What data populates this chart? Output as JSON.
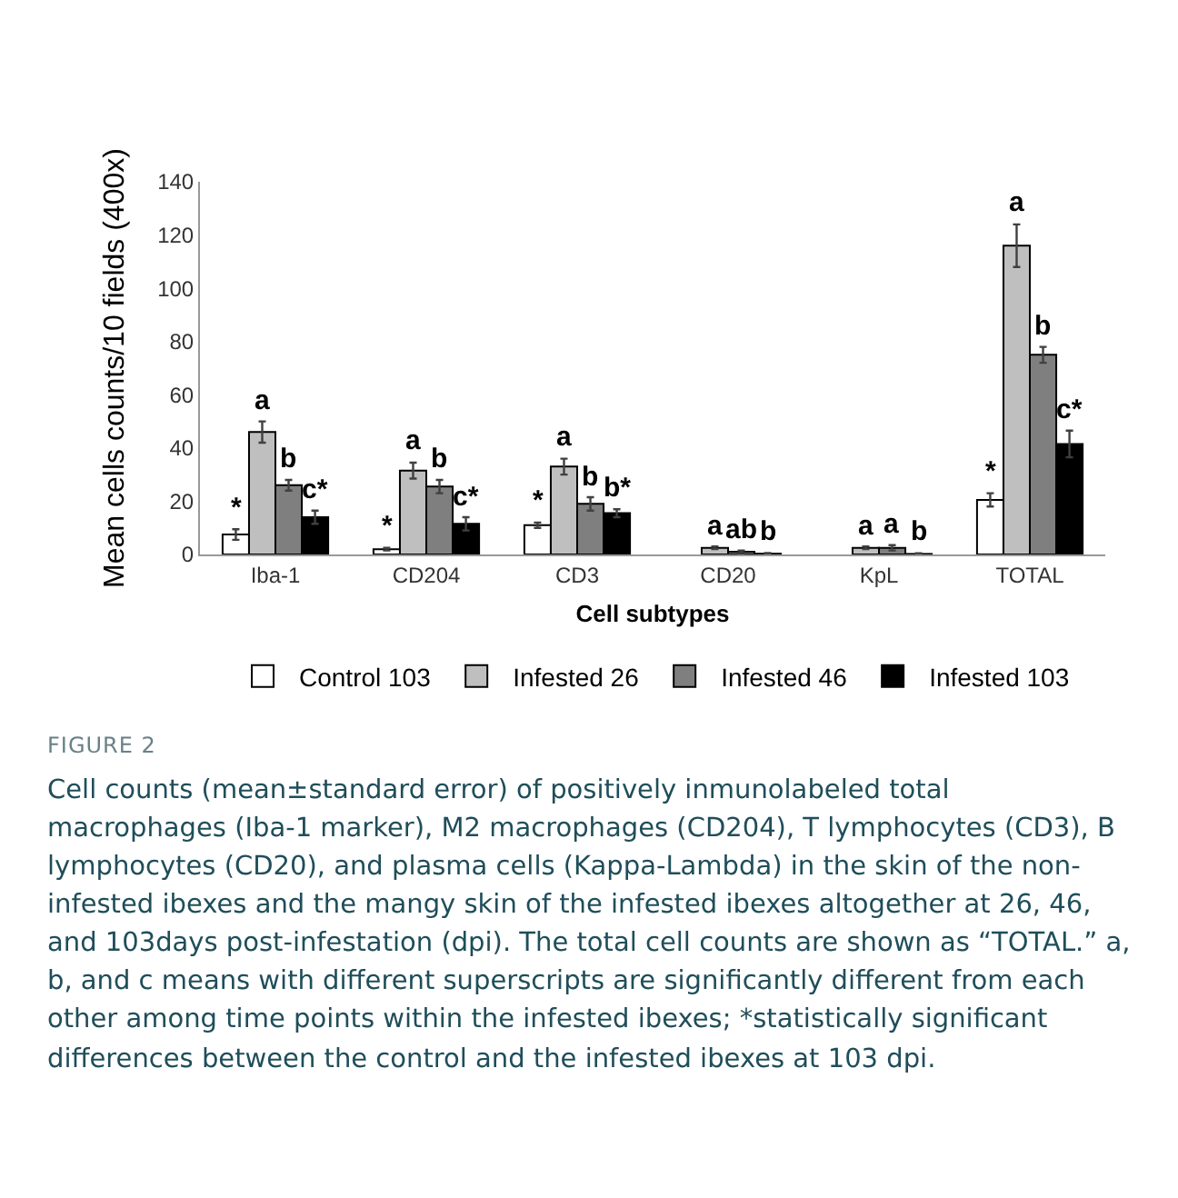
{
  "chart_data": {
    "type": "bar",
    "xlabel": "Cell subtypes",
    "ylabel": "Mean cells counts/10 fields (400x)",
    "categories": [
      "Iba-1",
      "CD204",
      "CD3",
      "CD20",
      "KpL",
      "TOTAL"
    ],
    "series": [
      {
        "name": "Control 103",
        "color": "#ffffff",
        "values": [
          7.5,
          2,
          11,
          null,
          null,
          20.5
        ],
        "errors": [
          2,
          0.5,
          1,
          null,
          null,
          2.5
        ],
        "value_labels": [
          "*",
          "*",
          "*",
          null,
          null,
          "*"
        ]
      },
      {
        "name": "Infested 26",
        "color": "#bfbfbf",
        "values": [
          46,
          31.5,
          33,
          2.5,
          2.5,
          116
        ],
        "errors": [
          4,
          3,
          3,
          0.5,
          0.5,
          8
        ],
        "value_labels": [
          "a",
          "a",
          "a",
          "a",
          "a",
          "a"
        ]
      },
      {
        "name": "Infested 46",
        "color": "#7f7f7f",
        "values": [
          26,
          25.5,
          19,
          1,
          2.5,
          75
        ],
        "errors": [
          2,
          2.5,
          2.5,
          0.5,
          1,
          3
        ],
        "value_labels": [
          "b",
          "b",
          "b",
          "ab",
          "a",
          "b"
        ]
      },
      {
        "name": "Infested 103",
        "color": "#000000",
        "values": [
          14,
          11.5,
          15.5,
          0.3,
          0.2,
          41.5
        ],
        "errors": [
          2.5,
          2.5,
          1.5,
          0.2,
          0.2,
          5
        ],
        "value_labels": [
          "c*",
          "c*",
          "b*",
          "b",
          "b",
          "c*"
        ]
      }
    ],
    "ylim": [
      0,
      140
    ],
    "yticks": [
      0,
      20,
      40,
      60,
      80,
      100,
      120,
      140
    ],
    "grid": false,
    "legend": "bottom",
    "annotations": [
      "FIGURE 2",
      "Cell counts (mean±standard error) of positively inmunolabeled total macrophages (Iba-1 marker), M2 macrophages (CD204), T lymphocytes (CD3), B lymphocytes (CD20), and plasma cells (Kappa-Lambda) in the skin of the non-infested ibexes and the mangy skin of the infested ibexes altogether at 26, 46, and 103days post-infestation (dpi). The total cell counts are shown as “TOTAL.” a, b, and c means with different superscripts are significantly different from each other among time points within the infested ibexes; *statistically significant differences between the control and the infested ibexes at 103 dpi."
    ]
  }
}
